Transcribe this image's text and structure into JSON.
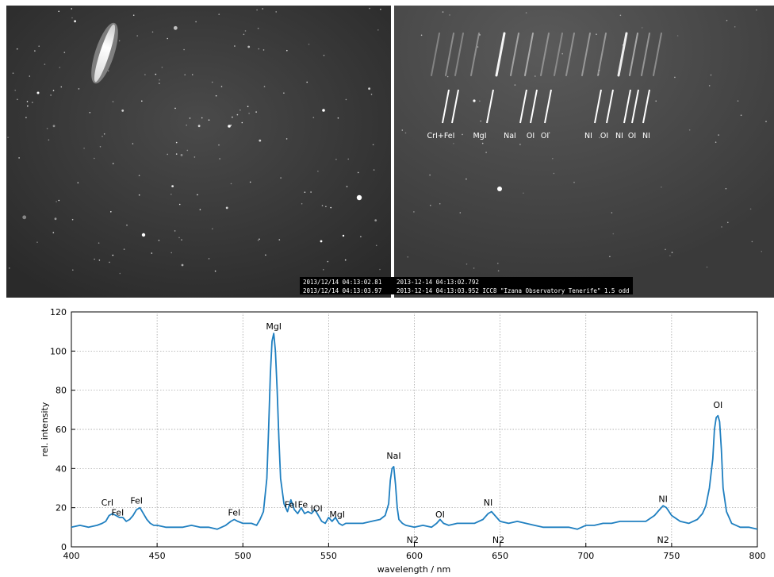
{
  "frames": {
    "left_timestamps": [
      "2013/12/14 04:13:02.81",
      "2013/12/14 04:13:03.97"
    ],
    "right_timestamps": [
      "2013-12-14 04:13:02.792",
      "2013-12-14 04:13:03.952 ICC8 \"Izana Observatory Tenerife\" 1.5 odd"
    ],
    "line_ids": [
      "CrI+FeI",
      "MgI",
      "NaI",
      "OI",
      "OI",
      "NI",
      "OI",
      "NI",
      "OI",
      "NI"
    ]
  },
  "chart_data": {
    "type": "line",
    "xlabel": "wavelength / nm",
    "ylabel": "rel. intensity",
    "xlim": [
      400,
      800
    ],
    "ylim": [
      0,
      120
    ],
    "x_ticks": [
      400,
      450,
      500,
      550,
      600,
      650,
      700,
      750,
      800
    ],
    "y_ticks": [
      0,
      20,
      40,
      60,
      80,
      100,
      120
    ],
    "grid": true,
    "color": "#1f7fc0",
    "series": [
      {
        "x": [
          400,
          405,
          410,
          415,
          418,
          420,
          422,
          424,
          426,
          428,
          430,
          432,
          434,
          436,
          438,
          440,
          442,
          444,
          446,
          448,
          450,
          455,
          460,
          465,
          470,
          475,
          480,
          485,
          490,
          493,
          495,
          497,
          500,
          505,
          508,
          510,
          512,
          514,
          515,
          516,
          517,
          518,
          519,
          520,
          521,
          522,
          524,
          526,
          528,
          530,
          532,
          534,
          536,
          538,
          540,
          542,
          544,
          546,
          548,
          550,
          552,
          554,
          556,
          558,
          560,
          565,
          570,
          575,
          580,
          583,
          585,
          586,
          587,
          588,
          589,
          590,
          591,
          593,
          595,
          600,
          605,
          610,
          613,
          615,
          617,
          620,
          625,
          630,
          635,
          640,
          643,
          645,
          648,
          650,
          655,
          660,
          665,
          670,
          675,
          680,
          685,
          690,
          695,
          700,
          705,
          710,
          715,
          720,
          725,
          730,
          735,
          740,
          743,
          745,
          747,
          750,
          755,
          760,
          765,
          768,
          770,
          772,
          774,
          775,
          776,
          777,
          778,
          779,
          780,
          782,
          785,
          790,
          795,
          800
        ],
        "values": [
          10,
          11,
          10,
          11,
          12,
          13,
          16,
          17,
          16,
          15,
          15,
          13,
          14,
          16,
          19,
          20,
          17,
          14,
          12,
          11,
          11,
          10,
          10,
          10,
          11,
          10,
          10,
          9,
          11,
          13,
          14,
          13,
          12,
          12,
          11,
          14,
          18,
          35,
          60,
          88,
          105,
          109,
          100,
          80,
          55,
          35,
          22,
          18,
          24,
          19,
          17,
          20,
          17,
          18,
          17,
          19,
          16,
          13,
          12,
          15,
          13,
          15,
          12,
          11,
          12,
          12,
          12,
          13,
          14,
          16,
          22,
          34,
          40,
          41,
          32,
          20,
          14,
          12,
          11,
          10,
          11,
          10,
          12,
          14,
          12,
          11,
          12,
          12,
          12,
          14,
          17,
          18,
          15,
          13,
          12,
          13,
          12,
          11,
          10,
          10,
          10,
          10,
          9,
          11,
          11,
          12,
          12,
          13,
          13,
          13,
          13,
          16,
          19,
          21,
          20,
          16,
          13,
          12,
          14,
          17,
          21,
          30,
          45,
          60,
          66,
          67,
          64,
          50,
          30,
          18,
          12,
          10,
          10,
          9
        ]
      }
    ],
    "annotations": [
      {
        "text": "CrI",
        "x": 421,
        "y": 21
      },
      {
        "text": "FeI",
        "x": 427,
        "y": 16
      },
      {
        "text": "FeI",
        "x": 438,
        "y": 22
      },
      {
        "text": "FeI",
        "x": 495,
        "y": 16
      },
      {
        "text": "MgI",
        "x": 518,
        "y": 111
      },
      {
        "text": "FeI",
        "x": 528,
        "y": 20
      },
      {
        "text": "Fe",
        "x": 535,
        "y": 20
      },
      {
        "text": "IOI",
        "x": 543,
        "y": 18
      },
      {
        "text": "MgI",
        "x": 555,
        "y": 15
      },
      {
        "text": "NaI",
        "x": 588,
        "y": 45
      },
      {
        "text": "N2",
        "x": 599,
        "y": 2
      },
      {
        "text": "OI",
        "x": 615,
        "y": 15
      },
      {
        "text": "NI",
        "x": 643,
        "y": 21
      },
      {
        "text": "N2",
        "x": 649,
        "y": 2
      },
      {
        "text": "NI",
        "x": 745,
        "y": 23
      },
      {
        "text": "N2",
        "x": 745,
        "y": 2
      },
      {
        "text": "OI",
        "x": 777,
        "y": 71
      }
    ]
  }
}
